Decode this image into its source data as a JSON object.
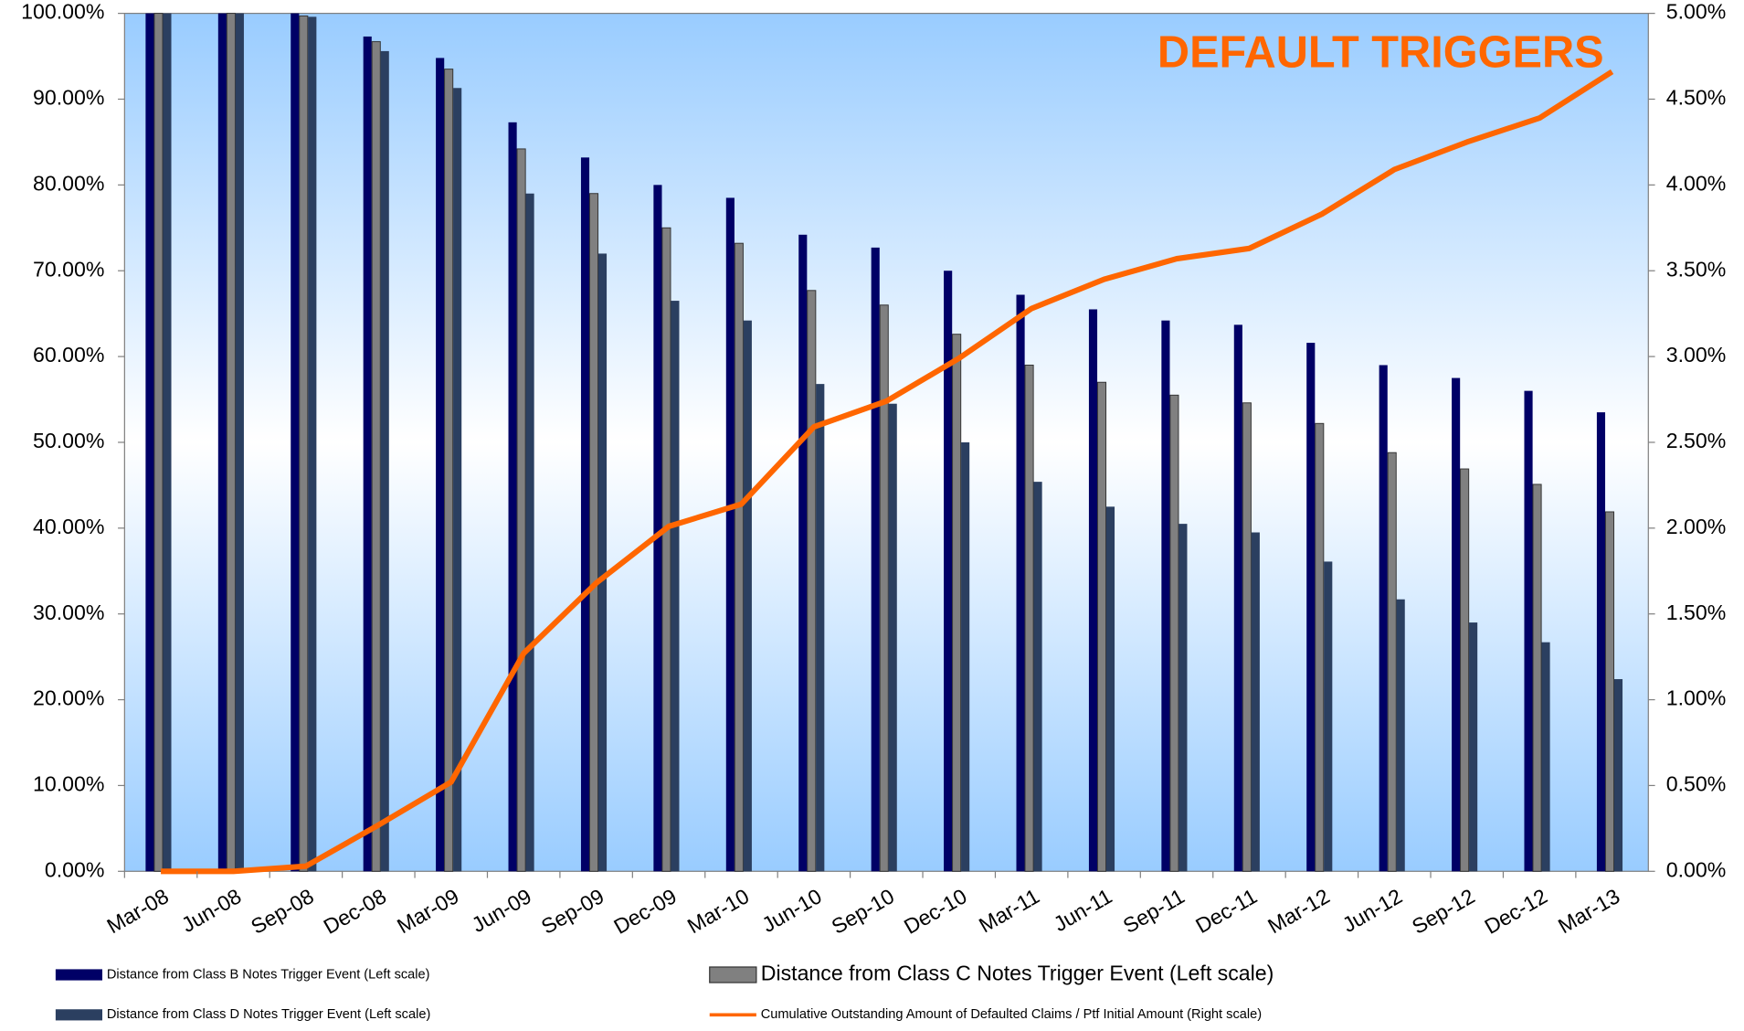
{
  "chart_data": {
    "type": "bar",
    "title": "DEFAULT TRIGGERS",
    "categories": [
      "Mar-08",
      "Jun-08",
      "Sep-08",
      "Dec-08",
      "Mar-09",
      "Jun-09",
      "Sep-09",
      "Dec-09",
      "Mar-10",
      "Jun-10",
      "Sep-10",
      "Dec-10",
      "Mar-11",
      "Jun-11",
      "Sep-11",
      "Dec-11",
      "Mar-12",
      "Jun-12",
      "Sep-12",
      "Dec-12",
      "Mar-13"
    ],
    "series": [
      {
        "name": "Distance from Class B Notes Trigger Event (Left scale)",
        "color": "#000066",
        "values": [
          100,
          100,
          100,
          97.3,
          94.8,
          87.3,
          83.2,
          80,
          78.5,
          74.2,
          72.7,
          70,
          67.2,
          65.5,
          64.2,
          63.7,
          61.6,
          59,
          57.5,
          56,
          53.5
        ]
      },
      {
        "name": "Distance from Class C Notes Trigger Event (Left scale)",
        "color": "#808080",
        "values": [
          100,
          100,
          99.7,
          96.7,
          93.5,
          84.2,
          79,
          75,
          73.2,
          67.7,
          66,
          62.6,
          59,
          57,
          55.5,
          54.6,
          52.2,
          48.8,
          46.9,
          45.1,
          41.9
        ]
      },
      {
        "name": "Distance from Class D Notes Trigger Event (Left scale)",
        "color": "#2b3f60",
        "values": [
          100,
          100,
          99.6,
          95.6,
          91.3,
          79,
          72,
          66.5,
          64.2,
          56.8,
          54.5,
          50,
          45.4,
          42.5,
          40.5,
          39.5,
          36.1,
          31.7,
          29,
          26.7,
          22.4
        ]
      },
      {
        "name": "Cumulative Outstanding Amount of Defaulted Claims / Ptf Initial Amount (Right scale)",
        "color": "#ff6600",
        "type": "line",
        "axis": "y2",
        "values": [
          0,
          0,
          0.03,
          0.27,
          0.52,
          1.27,
          1.68,
          2.01,
          2.14,
          2.59,
          2.74,
          2.99,
          3.28,
          3.45,
          3.57,
          3.63,
          3.83,
          4.09,
          4.25,
          4.39,
          4.66
        ]
      }
    ],
    "ylim": [
      0,
      100
    ],
    "yticks": [
      {
        "value": 0,
        "label": "0.00%"
      },
      {
        "value": 10,
        "label": "10.00%"
      },
      {
        "value": 20,
        "label": "20.00%"
      },
      {
        "value": 30,
        "label": "30.00%"
      },
      {
        "value": 40,
        "label": "40.00%"
      },
      {
        "value": 50,
        "label": "50.00%"
      },
      {
        "value": 60,
        "label": "60.00%"
      },
      {
        "value": 70,
        "label": "70.00%"
      },
      {
        "value": 80,
        "label": "80.00%"
      },
      {
        "value": 90,
        "label": "90.00%"
      },
      {
        "value": 100,
        "label": "100.00%"
      }
    ],
    "y2lim": [
      0,
      5
    ],
    "y2ticks": [
      {
        "value": 0,
        "label": "0.00%"
      },
      {
        "value": 0.5,
        "label": "0.50%"
      },
      {
        "value": 1,
        "label": "1.00%"
      },
      {
        "value": 1.5,
        "label": "1.50%"
      },
      {
        "value": 2,
        "label": "2.00%"
      },
      {
        "value": 2.5,
        "label": "2.50%"
      },
      {
        "value": 3,
        "label": "3.00%"
      },
      {
        "value": 3.5,
        "label": "3.50%"
      },
      {
        "value": 4,
        "label": "4.00%"
      },
      {
        "value": 4.5,
        "label": "4.50%"
      },
      {
        "value": 5,
        "label": "5.00%"
      }
    ]
  }
}
